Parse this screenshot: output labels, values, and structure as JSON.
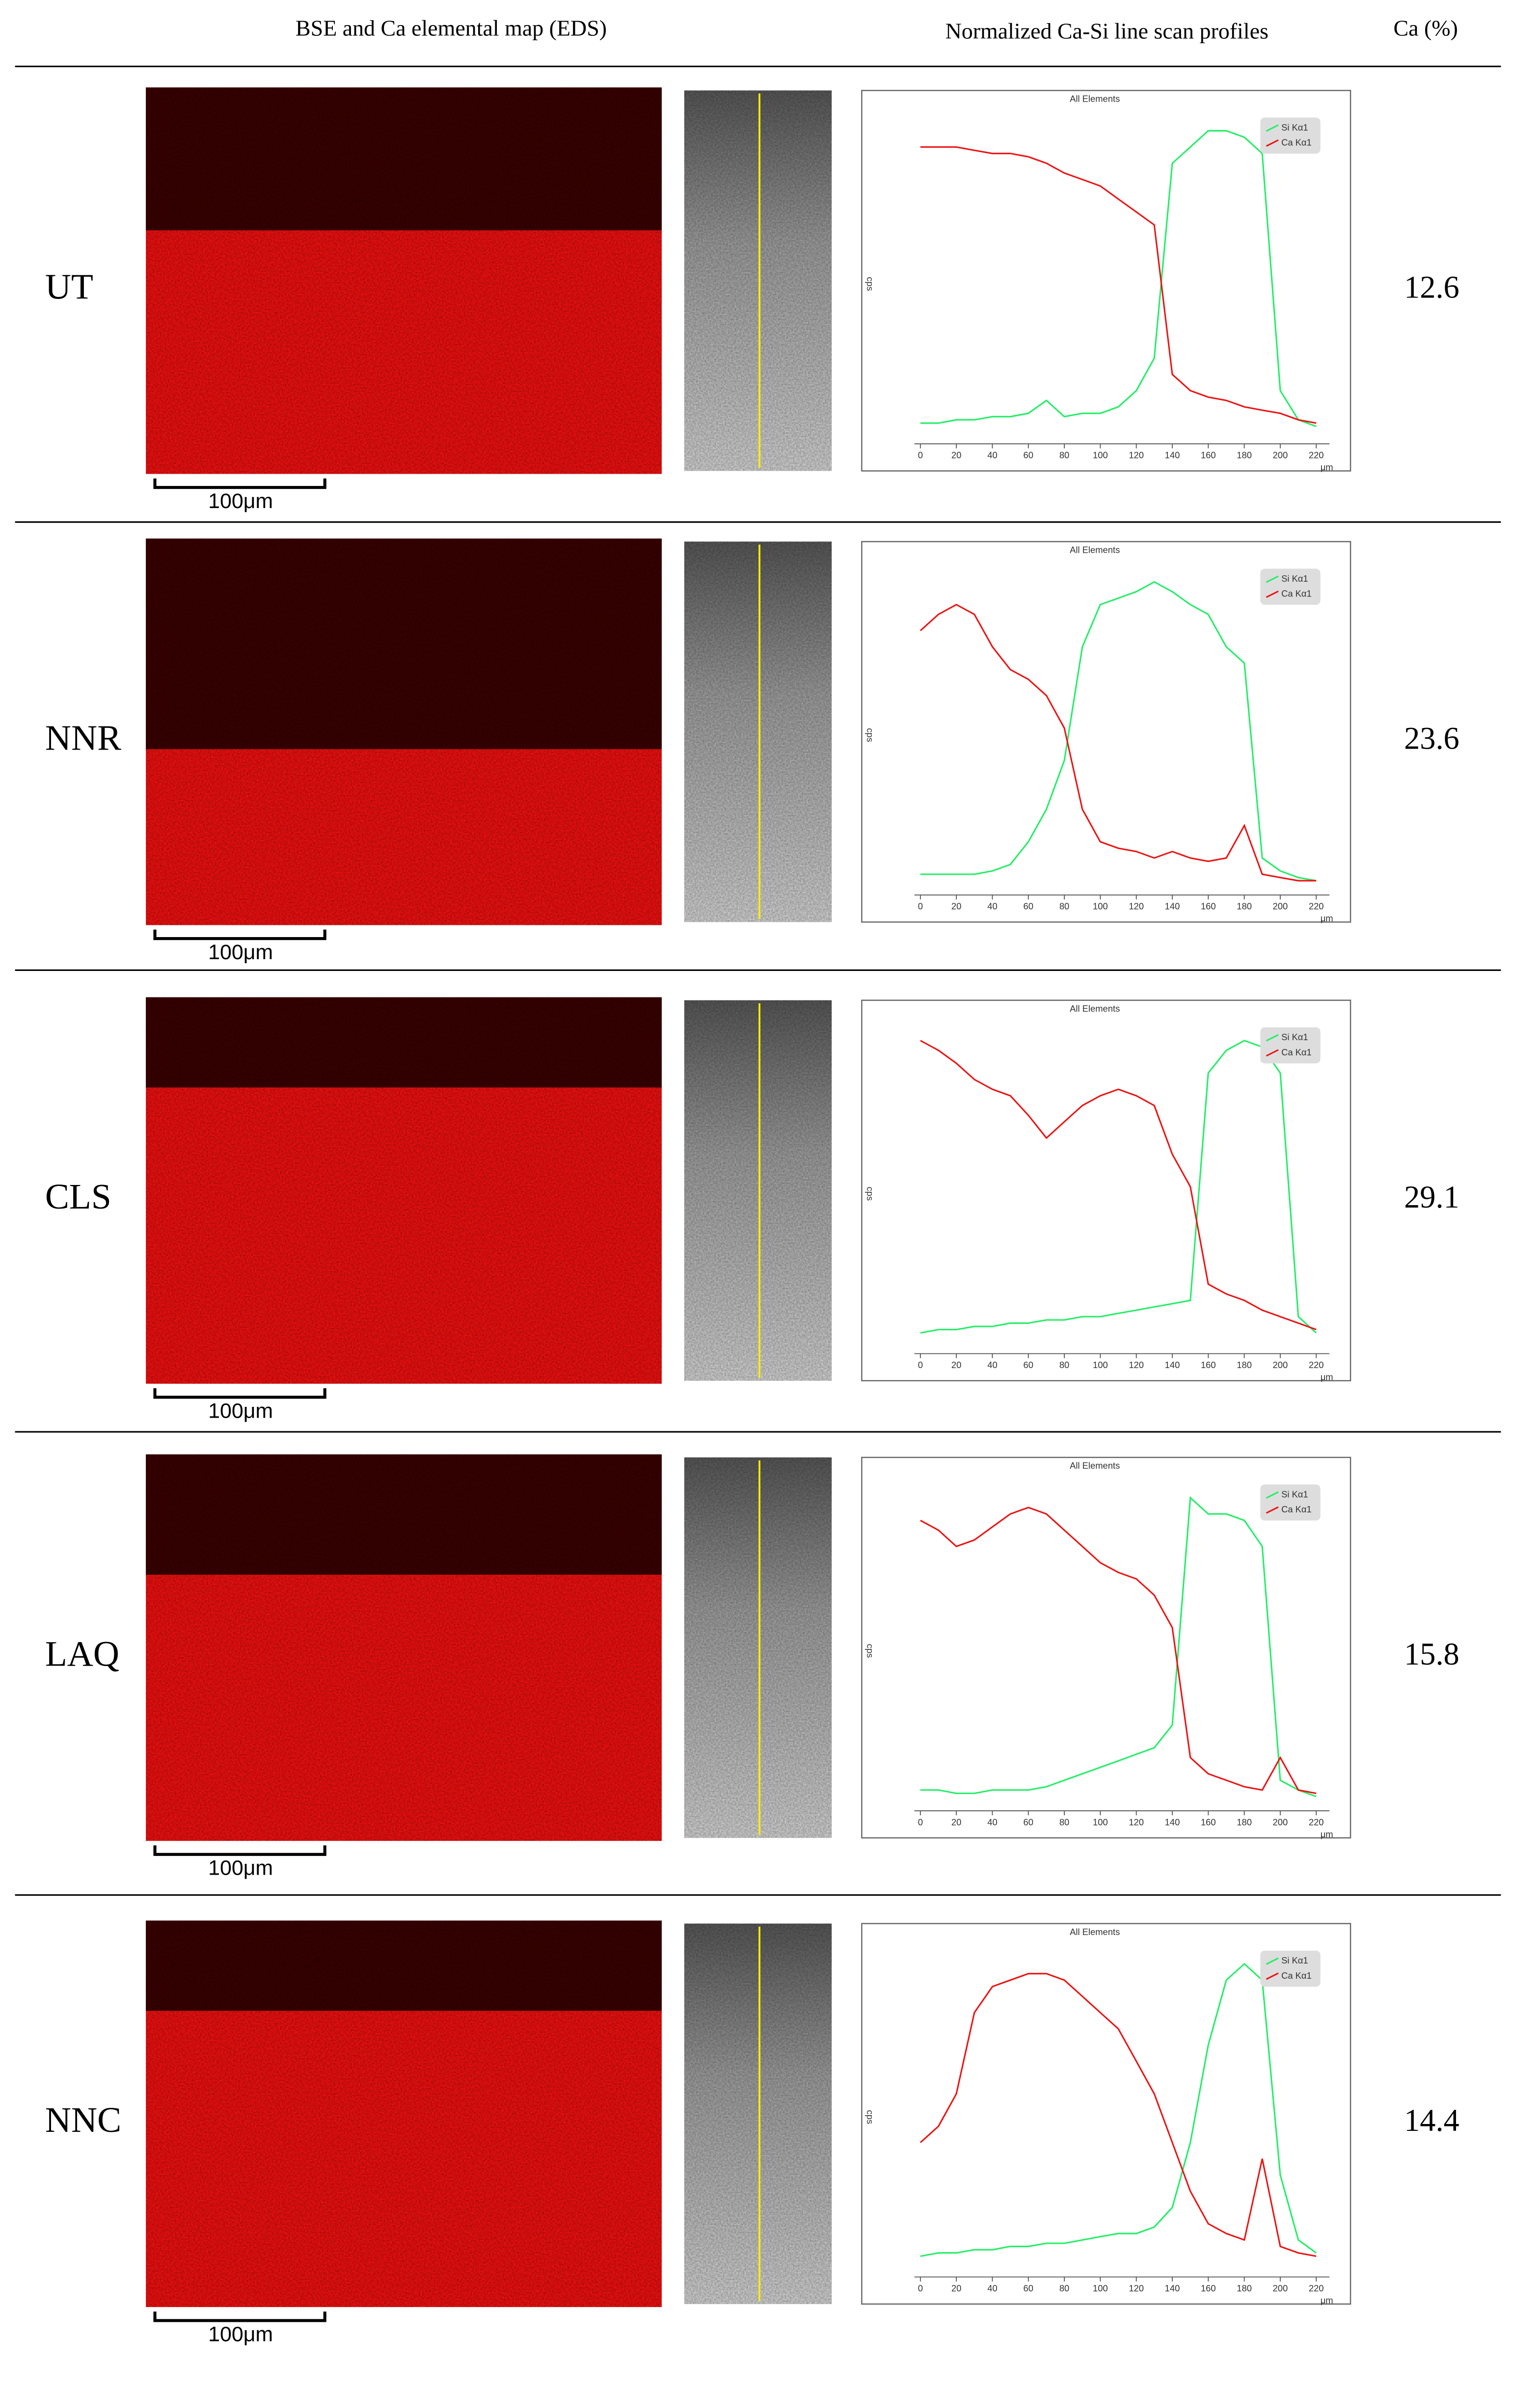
{
  "header": {
    "map_col": "BSE and Ca elemental map (EDS)",
    "profile_col": "Normalized Ca-Si line scan profiles",
    "ca_col": "Ca (%)"
  },
  "table": {
    "rows": [
      {
        "label": "UT",
        "ca": 12.6,
        "scale_bar": "100μm"
      },
      {
        "label": "NNR",
        "ca": 23.6,
        "scale_bar": "100μm"
      },
      {
        "label": "CLS",
        "ca": 29.1,
        "scale_bar": "100μm"
      },
      {
        "label": "LAQ",
        "ca": 15.8,
        "scale_bar": "100μm"
      },
      {
        "label": "NNC",
        "ca": 14.4,
        "scale_bar": "100μm"
      }
    ]
  },
  "chart_data": [
    {
      "type": "line",
      "title": "All Elements",
      "y_label": "cps",
      "x_label": "μm",
      "xlim": [
        0,
        224
      ],
      "ylim": [
        0,
        100
      ],
      "xticks": [
        0,
        20,
        40,
        60,
        80,
        100,
        120,
        140,
        160,
        180,
        200,
        220
      ],
      "legend": "upper right",
      "x": [
        0,
        10,
        20,
        30,
        40,
        50,
        60,
        70,
        80,
        90,
        100,
        110,
        120,
        130,
        140,
        150,
        160,
        170,
        180,
        190,
        200,
        210,
        220
      ],
      "series": [
        {
          "name": "Si Kα1",
          "color": "#22ee66",
          "values": [
            5,
            5,
            6,
            6,
            7,
            7,
            8,
            12,
            7,
            8,
            8,
            10,
            15,
            25,
            85,
            90,
            95,
            95,
            93,
            88,
            15,
            6,
            4
          ]
        },
        {
          "name": "Ca Kα1",
          "color": "#ee1111",
          "values": [
            90,
            90,
            90,
            89,
            88,
            88,
            87,
            85,
            82,
            80,
            78,
            74,
            70,
            66,
            20,
            15,
            13,
            12,
            10,
            9,
            8,
            6,
            5
          ]
        }
      ]
    },
    {
      "type": "line",
      "title": "All Elements",
      "y_label": "cps",
      "x_label": "μm",
      "xlim": [
        0,
        224
      ],
      "ylim": [
        0,
        100
      ],
      "xticks": [
        0,
        20,
        40,
        60,
        80,
        100,
        120,
        140,
        160,
        180,
        200,
        220
      ],
      "legend": "upper right",
      "x": [
        0,
        10,
        20,
        30,
        40,
        50,
        60,
        70,
        80,
        90,
        100,
        110,
        120,
        130,
        140,
        150,
        160,
        170,
        180,
        190,
        200,
        210,
        220
      ],
      "series": [
        {
          "name": "Si Kα1",
          "color": "#22ee66",
          "values": [
            5,
            5,
            5,
            5,
            6,
            8,
            15,
            25,
            40,
            75,
            88,
            90,
            92,
            95,
            92,
            88,
            85,
            75,
            70,
            10,
            6,
            4,
            3
          ]
        },
        {
          "name": "Ca Kα1",
          "color": "#ee1111",
          "values": [
            80,
            85,
            88,
            85,
            75,
            68,
            65,
            60,
            50,
            25,
            15,
            13,
            12,
            10,
            12,
            10,
            9,
            10,
            20,
            5,
            4,
            3,
            3
          ]
        }
      ]
    },
    {
      "type": "line",
      "title": "All Elements",
      "y_label": "cps",
      "x_label": "μm",
      "xlim": [
        0,
        224
      ],
      "ylim": [
        0,
        100
      ],
      "xticks": [
        0,
        20,
        40,
        60,
        80,
        100,
        120,
        140,
        160,
        180,
        200,
        220
      ],
      "legend": "upper right",
      "x": [
        0,
        10,
        20,
        30,
        40,
        50,
        60,
        70,
        80,
        90,
        100,
        110,
        120,
        130,
        140,
        150,
        160,
        170,
        180,
        190,
        200,
        210,
        220
      ],
      "series": [
        {
          "name": "Si Kα1",
          "color": "#22ee66",
          "values": [
            5,
            6,
            6,
            7,
            7,
            8,
            8,
            9,
            9,
            10,
            10,
            11,
            12,
            13,
            14,
            15,
            85,
            92,
            95,
            93,
            85,
            10,
            5
          ]
        },
        {
          "name": "Ca Kα1",
          "color": "#ee1111",
          "values": [
            95,
            92,
            88,
            83,
            80,
            78,
            72,
            65,
            70,
            75,
            78,
            80,
            78,
            75,
            60,
            50,
            20,
            17,
            15,
            12,
            10,
            8,
            6
          ]
        }
      ]
    },
    {
      "type": "line",
      "title": "All Elements",
      "y_label": "cps",
      "x_label": "μm",
      "xlim": [
        0,
        224
      ],
      "ylim": [
        0,
        100
      ],
      "xticks": [
        0,
        20,
        40,
        60,
        80,
        100,
        120,
        140,
        160,
        180,
        200,
        220
      ],
      "legend": "upper right",
      "x": [
        0,
        10,
        20,
        30,
        40,
        50,
        60,
        70,
        80,
        90,
        100,
        110,
        120,
        130,
        140,
        150,
        160,
        170,
        180,
        190,
        200,
        210,
        220
      ],
      "series": [
        {
          "name": "Si Kα1",
          "color": "#22ee66",
          "values": [
            5,
            5,
            4,
            4,
            5,
            5,
            5,
            6,
            8,
            10,
            12,
            14,
            16,
            18,
            25,
            95,
            90,
            90,
            88,
            80,
            8,
            5,
            3
          ]
        },
        {
          "name": "Ca Kα1",
          "color": "#ee1111",
          "values": [
            88,
            85,
            80,
            82,
            86,
            90,
            92,
            90,
            85,
            80,
            75,
            72,
            70,
            65,
            55,
            15,
            10,
            8,
            6,
            5,
            15,
            5,
            4
          ]
        }
      ]
    },
    {
      "type": "line",
      "title": "All Elements",
      "y_label": "cps",
      "x_label": "μm",
      "xlim": [
        0,
        224
      ],
      "ylim": [
        0,
        100
      ],
      "xticks": [
        0,
        20,
        40,
        60,
        80,
        100,
        120,
        140,
        160,
        180,
        200,
        220
      ],
      "legend": "upper right",
      "x": [
        0,
        10,
        20,
        30,
        40,
        50,
        60,
        70,
        80,
        90,
        100,
        110,
        120,
        130,
        140,
        150,
        160,
        170,
        180,
        190,
        200,
        210,
        220
      ],
      "series": [
        {
          "name": "Si Kα1",
          "color": "#22ee66",
          "values": [
            5,
            6,
            6,
            7,
            7,
            8,
            8,
            9,
            9,
            10,
            11,
            12,
            12,
            14,
            20,
            40,
            70,
            90,
            95,
            90,
            30,
            10,
            6
          ]
        },
        {
          "name": "Ca Kα1",
          "color": "#ee1111",
          "values": [
            40,
            45,
            55,
            80,
            88,
            90,
            92,
            92,
            90,
            85,
            80,
            75,
            65,
            55,
            40,
            25,
            15,
            12,
            10,
            35,
            8,
            6,
            5
          ]
        }
      ]
    }
  ]
}
